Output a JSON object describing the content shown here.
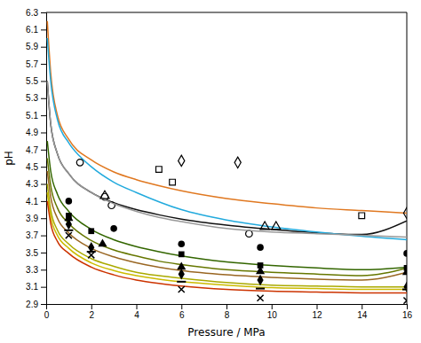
{
  "chart_data": {
    "type": "line",
    "xlabel": "Pressure / MPa",
    "ylabel": "pH",
    "xlim": [
      0,
      16
    ],
    "ylim": [
      2.9,
      6.3
    ],
    "xticks": [
      0,
      2,
      4,
      6,
      8,
      10,
      12,
      14,
      16
    ],
    "yticks": [
      2.9,
      3.1,
      3.3,
      3.5,
      3.7,
      3.9,
      4.1,
      4.3,
      4.5,
      4.7,
      4.9,
      5.1,
      5.3,
      5.5,
      5.7,
      5.9,
      6.1,
      6.3
    ],
    "grid": false,
    "series": [
      {
        "type": "line",
        "color": "#E07820",
        "x": [
          0.05,
          0.2,
          0.5,
          1.0,
          2.0,
          3.0,
          4.0,
          5.0,
          6.0,
          8.0,
          10.0,
          12.0,
          14.0,
          16.0
        ],
        "values": [
          6.2,
          5.6,
          5.1,
          4.82,
          4.58,
          4.44,
          4.35,
          4.28,
          4.22,
          4.13,
          4.07,
          4.02,
          3.99,
          3.96
        ]
      },
      {
        "type": "scatter",
        "color": "#000000",
        "marker": "diamond-open",
        "x": [
          6.0,
          8.5,
          16.0
        ],
        "values": [
          4.57,
          4.55,
          3.96
        ]
      },
      {
        "type": "line",
        "color": "#111111",
        "x": [
          0.05,
          0.2,
          0.5,
          1.0,
          2.0,
          3.0,
          4.0,
          5.0,
          6.0,
          8.0,
          10.0,
          12.0,
          14.0,
          16.0
        ],
        "values": [
          5.5,
          5.0,
          4.65,
          4.42,
          4.2,
          4.08,
          4.0,
          3.94,
          3.89,
          3.82,
          3.77,
          3.73,
          3.71,
          3.87
        ]
      },
      {
        "type": "scatter",
        "color": "#000000",
        "marker": "square-open",
        "x": [
          5.0,
          5.6,
          14.0
        ],
        "values": [
          4.47,
          4.32,
          3.93
        ]
      },
      {
        "type": "line",
        "color": "#22AADD",
        "x": [
          0.05,
          0.2,
          0.5,
          1.0,
          1.5,
          2.0,
          3.0,
          4.0,
          6.0,
          8.0,
          10.0,
          12.0,
          14.0,
          16.0
        ],
        "values": [
          6.0,
          5.5,
          5.05,
          4.78,
          4.62,
          4.5,
          4.32,
          4.2,
          4.0,
          3.88,
          3.8,
          3.74,
          3.69,
          3.65
        ]
      },
      {
        "type": "scatter",
        "color": "#000000",
        "marker": "circle-open",
        "x": [
          1.5,
          2.6,
          2.9,
          9.0
        ],
        "values": [
          4.55,
          4.15,
          4.05,
          3.72
        ]
      },
      {
        "type": "line",
        "color": "#999999",
        "x": [
          0.05,
          0.2,
          0.5,
          1.0,
          2.0,
          3.0,
          4.0,
          5.0,
          6.0,
          8.0,
          10.0,
          12.0,
          14.0,
          16.0
        ],
        "values": [
          5.5,
          5.0,
          4.65,
          4.42,
          4.2,
          4.07,
          3.98,
          3.91,
          3.86,
          3.78,
          3.74,
          3.72,
          3.7,
          3.68
        ]
      },
      {
        "type": "scatter",
        "color": "#000000",
        "marker": "triangle-open",
        "x": [
          2.6,
          9.7,
          10.2
        ],
        "values": [
          4.16,
          3.8,
          3.8
        ]
      },
      {
        "type": "line",
        "color": "#336600",
        "x": [
          0.05,
          0.2,
          0.5,
          1.0,
          2.0,
          3.0,
          4.0,
          5.0,
          6.0,
          8.0,
          10.0,
          12.0,
          14.0,
          16.0
        ],
        "values": [
          4.8,
          4.45,
          4.18,
          3.98,
          3.77,
          3.65,
          3.57,
          3.51,
          3.46,
          3.39,
          3.35,
          3.32,
          3.3,
          3.33
        ]
      },
      {
        "type": "scatter",
        "color": "#000000",
        "marker": "circle",
        "x": [
          1.0,
          3.0,
          6.0,
          9.5,
          16.0
        ],
        "values": [
          4.1,
          3.78,
          3.6,
          3.56,
          3.49
        ]
      },
      {
        "type": "line",
        "color": "#667700",
        "x": [
          0.05,
          0.2,
          0.5,
          1.0,
          2.0,
          3.0,
          4.0,
          5.0,
          6.0,
          8.0,
          10.0,
          12.0,
          14.0,
          16.0
        ],
        "values": [
          4.6,
          4.28,
          4.02,
          3.84,
          3.64,
          3.53,
          3.46,
          3.4,
          3.36,
          3.3,
          3.27,
          3.25,
          3.23,
          3.32
        ]
      },
      {
        "type": "scatter",
        "color": "#000000",
        "marker": "square",
        "x": [
          1.0,
          2.0,
          6.0,
          9.5,
          16.0
        ],
        "values": [
          3.93,
          3.75,
          3.48,
          3.35,
          3.32
        ]
      },
      {
        "type": "line",
        "color": "#996622",
        "x": [
          0.05,
          0.2,
          0.5,
          1.0,
          2.0,
          3.0,
          4.0,
          5.0,
          6.0,
          8.0,
          10.0,
          12.0,
          14.0,
          16.0
        ],
        "values": [
          4.45,
          4.15,
          3.9,
          3.73,
          3.55,
          3.45,
          3.38,
          3.33,
          3.29,
          3.24,
          3.21,
          3.19,
          3.18,
          3.27
        ]
      },
      {
        "type": "scatter",
        "color": "#000000",
        "marker": "triangle",
        "x": [
          1.0,
          2.5,
          6.0,
          9.5,
          16.0
        ],
        "values": [
          3.9,
          3.6,
          3.33,
          3.28,
          3.27
        ]
      },
      {
        "type": "line",
        "color": "#AAAA00",
        "x": [
          0.05,
          0.2,
          0.5,
          1.0,
          2.0,
          3.0,
          4.0,
          5.0,
          6.0,
          8.0,
          10.0,
          12.0,
          14.0,
          16.0
        ],
        "values": [
          4.3,
          4.0,
          3.76,
          3.6,
          3.43,
          3.34,
          3.27,
          3.23,
          3.2,
          3.15,
          3.12,
          3.11,
          3.1,
          3.1
        ]
      },
      {
        "type": "scatter",
        "color": "#000000",
        "marker": "diamond",
        "x": [
          1.0,
          2.0,
          6.0,
          9.5,
          16.0
        ],
        "values": [
          3.83,
          3.56,
          3.25,
          3.18,
          3.1
        ]
      },
      {
        "type": "line",
        "color": "#CCBB00",
        "x": [
          0.05,
          0.2,
          0.5,
          1.0,
          2.0,
          3.0,
          4.0,
          5.0,
          6.0,
          8.0,
          10.0,
          12.0,
          14.0,
          16.0
        ],
        "values": [
          4.2,
          3.92,
          3.7,
          3.55,
          3.38,
          3.29,
          3.23,
          3.19,
          3.16,
          3.12,
          3.09,
          3.08,
          3.07,
          3.07
        ]
      },
      {
        "type": "scatter",
        "color": "#000000",
        "marker": "dash",
        "x": [
          1.0,
          2.0,
          6.0,
          9.5,
          16.0
        ],
        "values": [
          3.76,
          3.51,
          3.16,
          3.08,
          3.07
        ]
      },
      {
        "type": "line",
        "color": "#CC3300",
        "x": [
          0.05,
          0.2,
          0.5,
          1.0,
          2.0,
          3.0,
          4.0,
          5.0,
          6.0,
          8.0,
          10.0,
          12.0,
          14.0,
          16.0
        ],
        "values": [
          4.1,
          3.84,
          3.63,
          3.49,
          3.33,
          3.24,
          3.18,
          3.14,
          3.11,
          3.07,
          3.05,
          3.04,
          3.03,
          3.03
        ]
      },
      {
        "type": "scatter",
        "color": "#000000",
        "marker": "x",
        "x": [
          1.0,
          2.0,
          6.0,
          9.5,
          16.0
        ],
        "values": [
          3.7,
          3.47,
          3.07,
          2.97,
          2.94
        ]
      }
    ]
  }
}
